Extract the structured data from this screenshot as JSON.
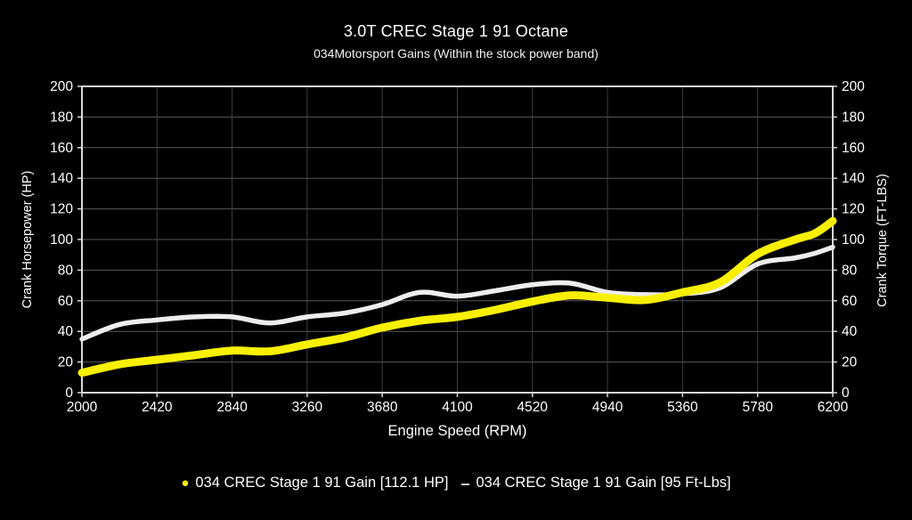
{
  "page": {
    "title": "3.0T CREC Stage 1 91 Octane",
    "subtitle": "034Motorsport Gains (Within the stock power band)"
  },
  "colors": {
    "background": "#000000",
    "text": "#ffffff",
    "axis_border": "#d9d9d9",
    "grid_horizontal": "#5a5a5a",
    "grid_vertical": "#3f3f3f",
    "hp_line": "#f8f000",
    "torque_line": "#ededed"
  },
  "chart_data": {
    "type": "line",
    "title": "3.0T CREC Stage 1 91 Octane",
    "subtitle": "034Motorsport Gains (Within the stock power band)",
    "xlabel": "Engine Speed (RPM)",
    "ylabel_left": "Crank Horsepower (HP)",
    "ylabel_right": "Crank Torque (FT-LBS)",
    "xlim": [
      2000,
      6200
    ],
    "ylim": [
      0,
      200
    ],
    "x_ticks": [
      2000,
      2420,
      2840,
      3260,
      3680,
      4100,
      4520,
      4940,
      5360,
      5780,
      6200
    ],
    "y_ticks": [
      0,
      20,
      40,
      60,
      80,
      100,
      120,
      140,
      160,
      180,
      200
    ],
    "grid": true,
    "legend_position": "bottom",
    "x": [
      2000,
      2210,
      2420,
      2630,
      2840,
      3050,
      3260,
      3470,
      3680,
      3890,
      4100,
      4310,
      4520,
      4730,
      4940,
      5150,
      5360,
      5570,
      5780,
      5990,
      6100,
      6200
    ],
    "series": [
      {
        "name": "034 CREC Stage 1 91 Gain [112.1 HP]",
        "axis": "left",
        "color": "#f8f000",
        "line_width": 9,
        "peak_value_label": "112.1 HP",
        "values": [
          13,
          18.5,
          21.5,
          24.5,
          27.5,
          27,
          31.5,
          36,
          42.5,
          47,
          49.5,
          54,
          59.5,
          63.5,
          62,
          60.5,
          65.5,
          72,
          90.5,
          100,
          104,
          112.1
        ]
      },
      {
        "name": "034 CREC Stage 1 91 Gain [95 Ft-Lbs]",
        "axis": "right",
        "color": "#ededed",
        "line_width": 5.5,
        "peak_value_label": "95 Ft-Lbs",
        "values": [
          35,
          44.5,
          47.5,
          49.5,
          49.5,
          45.5,
          49.5,
          52,
          57.5,
          65.5,
          63,
          66.5,
          70.5,
          71.5,
          65.5,
          64,
          64.5,
          68.5,
          84,
          88,
          91,
          95
        ]
      }
    ]
  },
  "legend": {
    "items": [
      {
        "marker": "●",
        "label": "034 CREC Stage 1 91 Gain [112.1 HP]",
        "color": "#f8f000"
      },
      {
        "marker": "–",
        "label": "034 CREC Stage 1 91 Gain [95 Ft-Lbs]",
        "color": "#ededed"
      }
    ]
  }
}
